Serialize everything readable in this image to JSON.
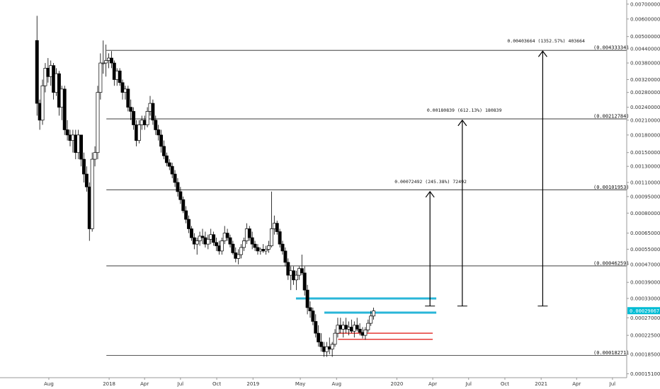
{
  "chart_data": {
    "type": "candlestick",
    "title": "",
    "y_axis": {
      "scale": "log",
      "range": [
        0.000145,
        0.0072
      ],
      "ticks": [
        "0.00700000",
        "0.00600000",
        "0.00500000",
        "0.00440000",
        "0.00380000",
        "0.00320000",
        "0.00280000",
        "0.00240000",
        "0.00210000",
        "0.00180000",
        "0.00150000",
        "0.00130000",
        "0.00110000",
        "0.00095000",
        "0.00080000",
        "0.00065000",
        "0.00055000",
        "0.00047000",
        "0.00039000",
        "0.00033000",
        "0.00027000",
        "0.00022500",
        "0.00018500",
        "0.00015100"
      ],
      "position": "right"
    },
    "x_axis": {
      "ticks": [
        {
          "label": "Aug",
          "date": "2017-08-01"
        },
        {
          "label": "2018",
          "date": "2018-01-01"
        },
        {
          "label": "Apr",
          "date": "2018-04-01"
        },
        {
          "label": "Jul",
          "date": "2018-07-01"
        },
        {
          "label": "Oct",
          "date": "2018-10-01"
        },
        {
          "label": "2019",
          "date": "2019-01-01"
        },
        {
          "label": "May",
          "date": "2019-05-01"
        },
        {
          "label": "Aug",
          "date": "2019-08-01"
        },
        {
          "label": "2020",
          "date": "2020-01-01"
        },
        {
          "label": "Apr",
          "date": "2020-04-01"
        },
        {
          "label": "Jul",
          "date": "2020-07-01"
        },
        {
          "label": "Oct",
          "date": "2020-10-01"
        },
        {
          "label": "2021",
          "date": "2021-01-01"
        },
        {
          "label": "Apr",
          "date": "2021-04-01"
        },
        {
          "label": "Jul",
          "date": "2021-07-01"
        }
      ]
    },
    "current_price": {
      "label": "0.00029067",
      "value": 0.00029067,
      "color": "#00bcd4"
    },
    "levels": [
      {
        "label": "(0.00433334)",
        "value": 0.00433334,
        "start": "2017-12-25"
      },
      {
        "label": "(0.00212784)",
        "value": 0.00212784,
        "start": "2017-12-25"
      },
      {
        "label": "(0.00101953)",
        "value": 0.00101953,
        "start": "2017-12-25"
      },
      {
        "label": "(0.00046259)",
        "value": 0.00046259,
        "start": "2017-12-25"
      },
      {
        "label": "(0.00018271)",
        "value": 0.00018271,
        "start": "2017-12-25"
      }
    ],
    "zones": [
      {
        "color": "#29b6d8",
        "value": 0.00033,
        "start": "2019-04-20",
        "end": "2020-04-10"
      },
      {
        "color": "#29b6d8",
        "value": 0.000285,
        "start": "2019-07-01",
        "end": "2020-04-10"
      },
      {
        "color": "#e53935",
        "value": 0.00023,
        "start": "2019-08-05",
        "end": "2020-04-01"
      },
      {
        "color": "#e53935",
        "value": 0.000216,
        "start": "2019-08-05",
        "end": "2020-04-01"
      }
    ],
    "targets": [
      {
        "label": "0.00072492 (245.38%) 72492",
        "from": 0.000305,
        "to": 0.001,
        "date": "2020-03-25"
      },
      {
        "label": "0.00180839 (612.13%) 180839",
        "from": 0.000305,
        "to": 0.0021,
        "date": "2020-06-15"
      },
      {
        "label": "0.00403664 (1352.57%) 403664",
        "from": 0.000305,
        "to": 0.0043,
        "date": "2021-01-05"
      }
    ],
    "candles": [
      [
        "2017-07-02",
        0.0048,
        0.0062,
        0.0022,
        0.0025
      ],
      [
        "2017-07-09",
        0.0025,
        0.0026,
        0.0019,
        0.0021
      ],
      [
        "2017-07-16",
        0.0021,
        0.0032,
        0.002,
        0.003
      ],
      [
        "2017-07-23",
        0.003,
        0.0038,
        0.0028,
        0.0036
      ],
      [
        "2017-07-30",
        0.0036,
        0.004,
        0.0031,
        0.0033
      ],
      [
        "2017-08-06",
        0.0033,
        0.0039,
        0.003,
        0.0037
      ],
      [
        "2017-08-13",
        0.0037,
        0.0038,
        0.0026,
        0.0028
      ],
      [
        "2017-08-20",
        0.0028,
        0.0036,
        0.0027,
        0.0034
      ],
      [
        "2017-08-27",
        0.0034,
        0.0035,
        0.0022,
        0.0024
      ],
      [
        "2017-09-03",
        0.0024,
        0.003,
        0.0021,
        0.0029
      ],
      [
        "2017-09-10",
        0.0029,
        0.003,
        0.0018,
        0.0019
      ],
      [
        "2017-09-17",
        0.0019,
        0.0021,
        0.0017,
        0.0018
      ],
      [
        "2017-09-24",
        0.0018,
        0.0019,
        0.0016,
        0.0017
      ],
      [
        "2017-10-01",
        0.0017,
        0.0019,
        0.0015,
        0.0018
      ],
      [
        "2017-10-08",
        0.0018,
        0.0019,
        0.0014,
        0.0015
      ],
      [
        "2017-10-15",
        0.0015,
        0.0019,
        0.0014,
        0.0018
      ],
      [
        "2017-10-22",
        0.0018,
        0.0018,
        0.0013,
        0.0014
      ],
      [
        "2017-10-29",
        0.0014,
        0.0015,
        0.0011,
        0.0012
      ],
      [
        "2017-11-05",
        0.0012,
        0.0013,
        0.001,
        0.00105
      ],
      [
        "2017-11-12",
        0.00105,
        0.0011,
        0.0006,
        0.00068
      ],
      [
        "2017-11-19",
        0.00068,
        0.0015,
        0.00066,
        0.0014
      ],
      [
        "2017-11-26",
        0.0014,
        0.0016,
        0.0013,
        0.0015
      ],
      [
        "2017-12-03",
        0.0015,
        0.003,
        0.0014,
        0.0028
      ],
      [
        "2017-12-10",
        0.0028,
        0.0042,
        0.0026,
        0.0038
      ],
      [
        "2017-12-17",
        0.0038,
        0.0048,
        0.0034,
        0.0038
      ],
      [
        "2017-12-24",
        0.0038,
        0.0046,
        0.0033,
        0.0039
      ],
      [
        "2017-12-31",
        0.0039,
        0.0042,
        0.0036,
        0.004
      ],
      [
        "2018-01-07",
        0.004,
        0.0043,
        0.0036,
        0.0038
      ],
      [
        "2018-01-14",
        0.0038,
        0.0039,
        0.003,
        0.0032
      ],
      [
        "2018-01-21",
        0.0032,
        0.0036,
        0.003,
        0.0035
      ],
      [
        "2018-01-28",
        0.0035,
        0.0036,
        0.003,
        0.0031
      ],
      [
        "2018-02-04",
        0.0031,
        0.0032,
        0.0026,
        0.0028
      ],
      [
        "2018-02-11",
        0.0028,
        0.003,
        0.0026,
        0.0029
      ],
      [
        "2018-02-18",
        0.0029,
        0.003,
        0.0023,
        0.0024
      ],
      [
        "2018-02-25",
        0.0024,
        0.0026,
        0.0021,
        0.0023
      ],
      [
        "2018-03-04",
        0.0023,
        0.0024,
        0.0019,
        0.002
      ],
      [
        "2018-03-11",
        0.002,
        0.0021,
        0.0016,
        0.0017
      ],
      [
        "2018-03-18",
        0.0017,
        0.0021,
        0.00165,
        0.002
      ],
      [
        "2018-03-25",
        0.002,
        0.0022,
        0.0019,
        0.0021
      ],
      [
        "2018-04-01",
        0.0021,
        0.0022,
        0.0019,
        0.002
      ],
      [
        "2018-04-08",
        0.002,
        0.0024,
        0.00195,
        0.0023
      ],
      [
        "2018-04-15",
        0.0023,
        0.0027,
        0.0022,
        0.0025
      ],
      [
        "2018-04-22",
        0.0025,
        0.0026,
        0.002,
        0.0021
      ],
      [
        "2018-04-29",
        0.0021,
        0.0022,
        0.0018,
        0.0019
      ],
      [
        "2018-05-06",
        0.0019,
        0.002,
        0.0017,
        0.0018
      ],
      [
        "2018-05-13",
        0.0018,
        0.0019,
        0.0015,
        0.0016
      ],
      [
        "2018-05-20",
        0.0016,
        0.0017,
        0.0014,
        0.00145
      ],
      [
        "2018-05-27",
        0.00145,
        0.0015,
        0.0013,
        0.00135
      ],
      [
        "2018-06-03",
        0.00135,
        0.0014,
        0.00125,
        0.0013
      ],
      [
        "2018-06-10",
        0.0013,
        0.00135,
        0.00115,
        0.0012
      ],
      [
        "2018-06-17",
        0.0012,
        0.00125,
        0.00105,
        0.0011
      ],
      [
        "2018-06-24",
        0.0011,
        0.00115,
        0.00095,
        0.001
      ],
      [
        "2018-07-01",
        0.001,
        0.00105,
        0.00088,
        0.00092
      ],
      [
        "2018-07-08",
        0.00092,
        0.00095,
        0.0008,
        0.00082
      ],
      [
        "2018-07-15",
        0.00082,
        0.00086,
        0.00072,
        0.00075
      ],
      [
        "2018-07-22",
        0.00075,
        0.00078,
        0.00065,
        0.00068
      ],
      [
        "2018-07-29",
        0.00068,
        0.0007,
        0.0006,
        0.00062
      ],
      [
        "2018-08-05",
        0.00062,
        0.00065,
        0.00055,
        0.00058
      ],
      [
        "2018-08-12",
        0.00058,
        0.00062,
        0.00052,
        0.0006
      ],
      [
        "2018-08-19",
        0.0006,
        0.00066,
        0.00057,
        0.00063
      ],
      [
        "2018-08-26",
        0.00063,
        0.00068,
        0.00058,
        0.00062
      ],
      [
        "2018-09-02",
        0.00062,
        0.00066,
        0.00056,
        0.00058
      ],
      [
        "2018-09-09",
        0.00058,
        0.00064,
        0.00055,
        0.00061
      ],
      [
        "2018-09-16",
        0.00061,
        0.00068,
        0.00058,
        0.00064
      ],
      [
        "2018-09-23",
        0.00064,
        0.00066,
        0.00057,
        0.00059
      ],
      [
        "2018-09-30",
        0.00059,
        0.00062,
        0.00054,
        0.00057
      ],
      [
        "2018-10-07",
        0.00057,
        0.0006,
        0.00052,
        0.00054
      ],
      [
        "2018-10-14",
        0.00054,
        0.00062,
        0.00052,
        0.0006
      ],
      [
        "2018-10-21",
        0.0006,
        0.0007,
        0.00058,
        0.00065
      ],
      [
        "2018-10-28",
        0.00065,
        0.00068,
        0.0006,
        0.00062
      ],
      [
        "2018-11-04",
        0.00062,
        0.00064,
        0.00056,
        0.00058
      ],
      [
        "2018-11-11",
        0.00058,
        0.0006,
        0.00052,
        0.00053
      ],
      [
        "2018-11-18",
        0.00053,
        0.00056,
        0.00048,
        0.0005
      ],
      [
        "2018-11-25",
        0.0005,
        0.00055,
        0.00047,
        0.00052
      ],
      [
        "2018-12-02",
        0.00052,
        0.00058,
        0.0005,
        0.00056
      ],
      [
        "2018-12-09",
        0.00056,
        0.00062,
        0.00054,
        0.0006
      ],
      [
        "2018-12-16",
        0.0006,
        0.00072,
        0.00058,
        0.00068
      ],
      [
        "2018-12-23",
        0.00068,
        0.0007,
        0.0006,
        0.00062
      ],
      [
        "2018-12-30",
        0.00062,
        0.00066,
        0.00055,
        0.00058
      ],
      [
        "2019-01-06",
        0.00058,
        0.0006,
        0.00054,
        0.00056
      ],
      [
        "2019-01-13",
        0.00056,
        0.00058,
        0.00052,
        0.00054
      ],
      [
        "2019-01-20",
        0.00054,
        0.00056,
        0.00052,
        0.00055
      ],
      [
        "2019-01-27",
        0.00055,
        0.00058,
        0.00053,
        0.00054
      ],
      [
        "2019-02-03",
        0.00054,
        0.00057,
        0.00052,
        0.00055
      ],
      [
        "2019-02-10",
        0.00055,
        0.0006,
        0.00053,
        0.00057
      ],
      [
        "2019-02-17",
        0.00057,
        0.001,
        0.00056,
        0.00068
      ],
      [
        "2019-02-24",
        0.00068,
        0.00078,
        0.00064,
        0.00072
      ],
      [
        "2019-03-03",
        0.00072,
        0.00074,
        0.00064,
        0.00066
      ],
      [
        "2019-03-10",
        0.00066,
        0.00068,
        0.00056,
        0.00058
      ],
      [
        "2019-03-17",
        0.00058,
        0.0006,
        0.00052,
        0.00054
      ],
      [
        "2019-03-24",
        0.00054,
        0.00056,
        0.00046,
        0.00048
      ],
      [
        "2019-03-31",
        0.00048,
        0.0005,
        0.0004,
        0.00042
      ],
      [
        "2019-04-07",
        0.00042,
        0.00046,
        0.00036,
        0.00044
      ],
      [
        "2019-04-14",
        0.00044,
        0.00046,
        0.00038,
        0.0004
      ],
      [
        "2019-04-21",
        0.0004,
        0.00044,
        0.00036,
        0.00042
      ],
      [
        "2019-04-28",
        0.00042,
        0.00046,
        0.0004,
        0.00045
      ],
      [
        "2019-05-05",
        0.00045,
        0.00052,
        0.00042,
        0.00043
      ],
      [
        "2019-05-12",
        0.00043,
        0.00046,
        0.00034,
        0.00036
      ],
      [
        "2019-05-19",
        0.00036,
        0.00038,
        0.00028,
        0.0003
      ],
      [
        "2019-05-26",
        0.0003,
        0.00032,
        0.00027,
        0.00029
      ],
      [
        "2019-06-02",
        0.00029,
        0.0003,
        0.00025,
        0.00026
      ],
      [
        "2019-06-09",
        0.00026,
        0.00028,
        0.00022,
        0.00023
      ],
      [
        "2019-06-16",
        0.00023,
        0.00025,
        0.0002,
        0.00021
      ],
      [
        "2019-06-23",
        0.00021,
        0.00023,
        0.00019,
        0.0002
      ],
      [
        "2019-06-30",
        0.0002,
        0.00021,
        0.00018,
        0.00019
      ],
      [
        "2019-07-07",
        0.00019,
        0.00021,
        0.00018,
        0.0002
      ],
      [
        "2019-07-14",
        0.0002,
        0.00022,
        0.000185,
        0.000195
      ],
      [
        "2019-07-21",
        0.000195,
        0.00021,
        0.00018,
        0.000205
      ],
      [
        "2019-07-28",
        0.000205,
        0.00024,
        0.0002,
        0.00023
      ],
      [
        "2019-08-04",
        0.00023,
        0.00027,
        0.00022,
        0.00025
      ],
      [
        "2019-08-11",
        0.00025,
        0.00027,
        0.00023,
        0.00024
      ],
      [
        "2019-08-18",
        0.00024,
        0.00026,
        0.00022,
        0.00025
      ],
      [
        "2019-08-25",
        0.00025,
        0.00027,
        0.00023,
        0.00024
      ],
      [
        "2019-09-01",
        0.00024,
        0.00026,
        0.000225,
        0.000245
      ],
      [
        "2019-09-08",
        0.000245,
        0.000265,
        0.00023,
        0.000235
      ],
      [
        "2019-09-15",
        0.000235,
        0.00026,
        0.00022,
        0.00025
      ],
      [
        "2019-09-22",
        0.00025,
        0.00027,
        0.000235,
        0.00024
      ],
      [
        "2019-09-29",
        0.00024,
        0.000255,
        0.000225,
        0.000232
      ],
      [
        "2019-10-06",
        0.000232,
        0.000245,
        0.000218,
        0.000225
      ],
      [
        "2019-10-13",
        0.000225,
        0.000245,
        0.000215,
        0.000238
      ],
      [
        "2019-10-20",
        0.000238,
        0.000265,
        0.000232,
        0.000255
      ],
      [
        "2019-10-27",
        0.000255,
        0.00029,
        0.000248,
        0.000275
      ],
      [
        "2019-11-03",
        0.000275,
        0.0003,
        0.000265,
        0.00029
      ]
    ]
  }
}
